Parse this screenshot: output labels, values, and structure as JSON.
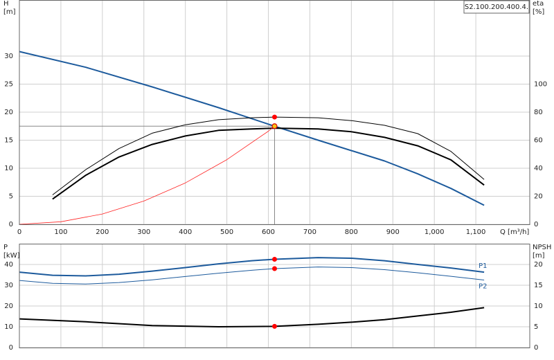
{
  "chart_data": [
    {
      "type": "line",
      "title": "S2.100.200.400.4.",
      "xlabel": "Q [m³/h]",
      "ylabel": [
        "H",
        "[m]"
      ],
      "y2label": [
        "eta",
        "[%]"
      ],
      "xlim": [
        0,
        1230
      ],
      "xticks": [
        0,
        100,
        200,
        300,
        400,
        500,
        600,
        700,
        800,
        900,
        {
          "value": 1000,
          "label": "1,000"
        },
        {
          "value": 1100,
          "label": "1,100"
        }
      ],
      "ylim": [
        0,
        40
      ],
      "yticks": [
        0,
        5,
        10,
        15,
        20,
        25,
        30
      ],
      "y2lim": [
        0,
        160
      ],
      "y2ticks": [
        0,
        20,
        40,
        60,
        80,
        100
      ],
      "grid": true,
      "series": [
        {
          "color": "#1c5a9c",
          "width": 2,
          "x": [
            0,
            160,
            320,
            480,
            615,
            720,
            880,
            960,
            1040,
            1120
          ],
          "values": [
            30.8,
            28.0,
            24.5,
            20.8,
            17.5,
            15.0,
            11.3,
            9.0,
            6.4,
            3.4
          ]
        },
        {
          "color": "#000000",
          "width": 1,
          "axis": "y2",
          "x": [
            80,
            160,
            240,
            320,
            400,
            480,
            560,
            615,
            720,
            800,
            880,
            960,
            1040,
            1120
          ],
          "values": [
            21,
            39,
            54,
            65,
            71,
            74.6,
            76,
            76.5,
            76,
            74,
            70.6,
            64.7,
            52,
            32
          ]
        },
        {
          "color": "#000000",
          "width": 2,
          "axis": "y2",
          "x": [
            80,
            160,
            240,
            320,
            400,
            480,
            560,
            615,
            720,
            800,
            880,
            960,
            1040,
            1120
          ],
          "values": [
            18,
            35,
            48,
            57,
            63,
            67,
            68,
            68.6,
            68,
            66,
            62,
            56,
            46,
            28
          ]
        },
        {
          "color": "#ff2020",
          "width": 0.8,
          "x": [
            0,
            100,
            200,
            300,
            400,
            500,
            600,
            615
          ],
          "values": [
            0,
            0.46,
            1.84,
            4.15,
            7.38,
            11.53,
            16.6,
            17.5
          ]
        }
      ],
      "operating_point": {
        "x": 615,
        "y": 17.5
      },
      "markers": [
        {
          "x": 615,
          "y": 76.5,
          "axis": "y2",
          "color": "#ff0000"
        },
        {
          "x": 615,
          "y": 17.5,
          "color": "#f5c518"
        }
      ]
    },
    {
      "type": "line",
      "ylabel": [
        "P",
        "[kW]"
      ],
      "y2label": [
        "NPSH",
        "[m]"
      ],
      "xlim": [
        0,
        1230
      ],
      "ylim": [
        0,
        50
      ],
      "yticks": [
        0,
        10,
        20,
        30,
        40
      ],
      "y2lim": [
        0,
        25
      ],
      "y2ticks": [
        0,
        5,
        10,
        15,
        20
      ],
      "grid": true,
      "series": [
        {
          "name": "P1",
          "color": "#1c5a9c",
          "width": 2,
          "x": [
            0,
            80,
            160,
            240,
            320,
            400,
            480,
            560,
            615,
            720,
            800,
            880,
            960,
            1040,
            1120
          ],
          "values": [
            36.3,
            34.8,
            34.5,
            35.3,
            36.8,
            38.5,
            40.3,
            41.8,
            42.5,
            43.3,
            43.0,
            41.8,
            40.0,
            38.3,
            36.3
          ]
        },
        {
          "name": "P2",
          "color": "#1c5a9c",
          "width": 1,
          "x": [
            0,
            80,
            160,
            240,
            320,
            400,
            480,
            560,
            615,
            720,
            800,
            880,
            960,
            1040,
            1120
          ],
          "values": [
            32.3,
            30.9,
            30.6,
            31.3,
            32.6,
            34.2,
            35.8,
            37.2,
            38.0,
            38.8,
            38.5,
            37.5,
            36.0,
            34.3,
            32.5
          ]
        },
        {
          "color": "#000000",
          "width": 2,
          "axis": "y2",
          "x": [
            0,
            160,
            320,
            480,
            615,
            720,
            800,
            880,
            960,
            1040,
            1120
          ],
          "values": [
            6.9,
            6.2,
            5.3,
            5.0,
            5.1,
            5.6,
            6.1,
            6.7,
            7.6,
            8.5,
            9.6
          ]
        }
      ],
      "markers": [
        {
          "x": 615,
          "y": 42.5,
          "color": "#ff0000"
        },
        {
          "x": 615,
          "y": 38.0,
          "color": "#ff0000"
        },
        {
          "x": 615,
          "y": 5.1,
          "axis": "y2",
          "color": "#ff0000"
        }
      ]
    }
  ]
}
